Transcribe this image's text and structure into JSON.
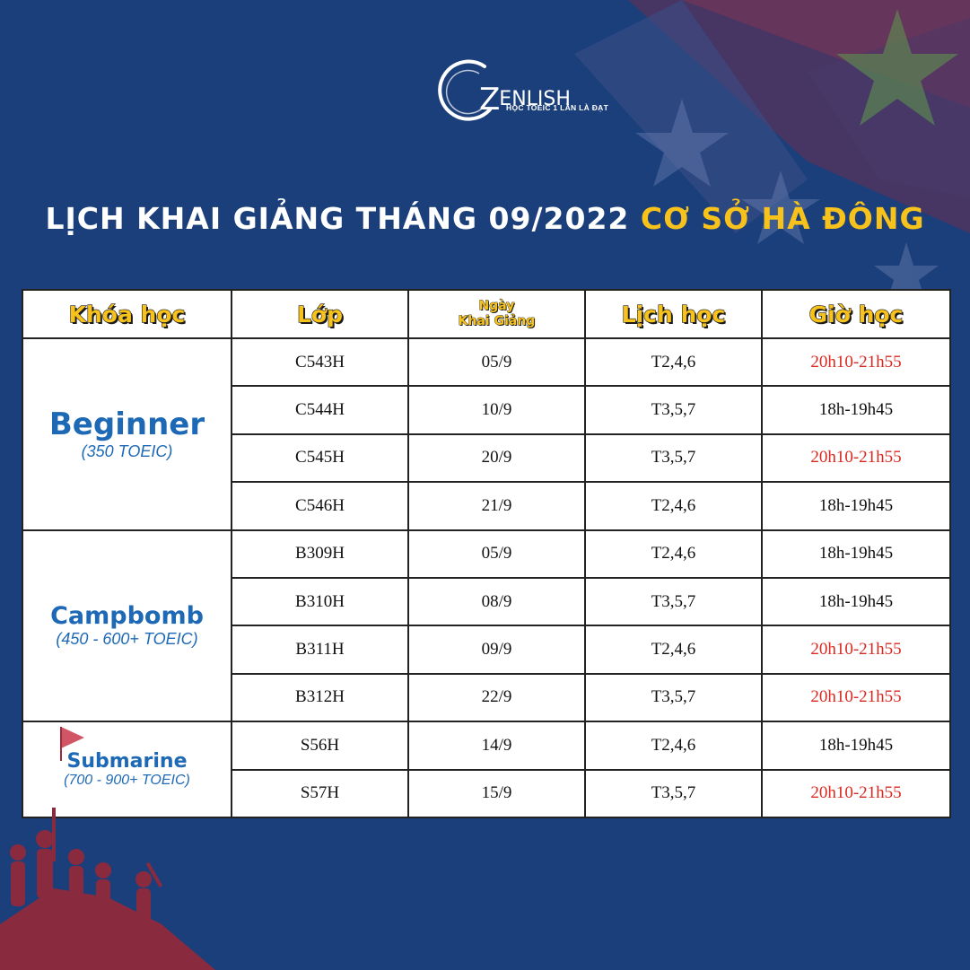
{
  "logo": {
    "name": "ENLISH",
    "letter": "Z",
    "tagline": "HỌC TOEIC 1 LẦN LÀ ĐẠT"
  },
  "title": {
    "part1": "LỊCH KHAI GIẢNG THÁNG 09/2022",
    "part2": "CƠ SỞ HÀ ĐÔNG"
  },
  "colors": {
    "background": "#1b3f7a",
    "title_accent": "#f7c21c",
    "header_text": "#f7c21c",
    "course_name": "#1e69b5",
    "evening_time": "#d9281f"
  },
  "table": {
    "headers": {
      "course": "Khóa học",
      "class": "Lớp",
      "start_line1": "Ngày",
      "start_line2": "Khai Giảng",
      "schedule": "Lịch học",
      "time": "Giờ học"
    },
    "groups": [
      {
        "name": "Beginner",
        "level": "(350 TOEIC)",
        "rows": [
          {
            "class": "C543H",
            "start": "05/9",
            "days": "T2,4,6",
            "time": "20h10-21h55",
            "highlight": true
          },
          {
            "class": "C544H",
            "start": "10/9",
            "days": "T3,5,7",
            "time": "18h-19h45",
            "highlight": false
          },
          {
            "class": "C545H",
            "start": "20/9",
            "days": "T3,5,7",
            "time": "20h10-21h55",
            "highlight": true
          },
          {
            "class": "C546H",
            "start": "21/9",
            "days": "T2,4,6",
            "time": "18h-19h45",
            "highlight": false
          }
        ]
      },
      {
        "name": "Campbomb",
        "level": "(450 - 600+ TOEIC)",
        "rows": [
          {
            "class": "B309H",
            "start": "05/9",
            "days": "T2,4,6",
            "time": "18h-19h45",
            "highlight": false
          },
          {
            "class": "B310H",
            "start": "08/9",
            "days": "T3,5,7",
            "time": "18h-19h45",
            "highlight": false
          },
          {
            "class": "B311H",
            "start": "09/9",
            "days": "T2,4,6",
            "time": "20h10-21h55",
            "highlight": true
          },
          {
            "class": "B312H",
            "start": "22/9",
            "days": "T3,5,7",
            "time": "20h10-21h55",
            "highlight": true
          }
        ]
      },
      {
        "name": "Submarine",
        "level": "(700 - 900+ TOEIC)",
        "rows": [
          {
            "class": "S56H",
            "start": "14/9",
            "days": "T2,4,6",
            "time": "18h-19h45",
            "highlight": false
          },
          {
            "class": "S57H",
            "start": "15/9",
            "days": "T3,5,7",
            "time": "20h10-21h55",
            "highlight": true
          }
        ]
      }
    ]
  }
}
